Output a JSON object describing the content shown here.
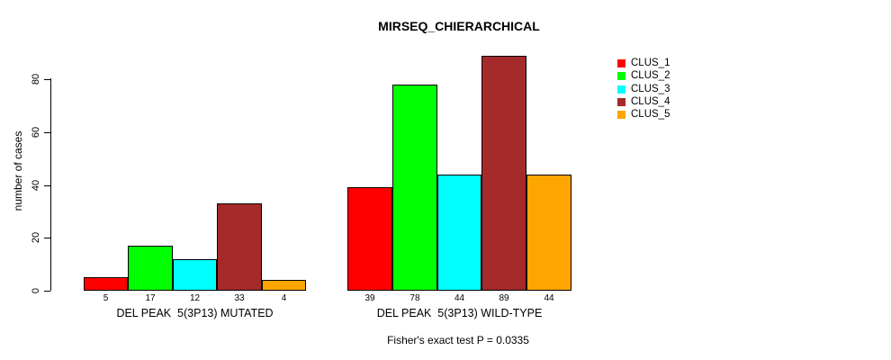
{
  "chart_data": {
    "type": "bar",
    "title": "MIRSEQ_CHIERARCHICAL",
    "ylabel": "number of cases",
    "xlabel": "",
    "ylim": [
      0,
      89
    ],
    "yticks": [
      0,
      20,
      40,
      60,
      80
    ],
    "grid": false,
    "legend_position": "top-right",
    "categories": [
      "DEL PEAK  5(3P13) MUTATED",
      "DEL PEAK  5(3P13) WILD-TYPE"
    ],
    "series": [
      {
        "name": "CLUS_1",
        "color": "#FF0000",
        "values": [
          5,
          39
        ]
      },
      {
        "name": "CLUS_2",
        "color": "#00FF00",
        "values": [
          17,
          78
        ]
      },
      {
        "name": "CLUS_3",
        "color": "#00FFFF",
        "values": [
          12,
          44
        ]
      },
      {
        "name": "CLUS_4",
        "color": "#A52A2A",
        "values": [
          33,
          89
        ]
      },
      {
        "name": "CLUS_5",
        "color": "#FFA500",
        "values": [
          4,
          44
        ]
      }
    ],
    "bar_value_labels": [
      [
        5,
        17,
        12,
        33,
        4
      ],
      [
        39,
        78,
        44,
        89,
        44
      ]
    ],
    "annotation": "Fisher's exact test P = 0.0335"
  },
  "legend": {
    "items": [
      {
        "label": "CLUS_1",
        "color": "#FF0000"
      },
      {
        "label": "CLUS_2",
        "color": "#00FF00"
      },
      {
        "label": "CLUS_3",
        "color": "#00FFFF"
      },
      {
        "label": "CLUS_4",
        "color": "#A52A2A"
      },
      {
        "label": "CLUS_5",
        "color": "#FFA500"
      }
    ]
  }
}
